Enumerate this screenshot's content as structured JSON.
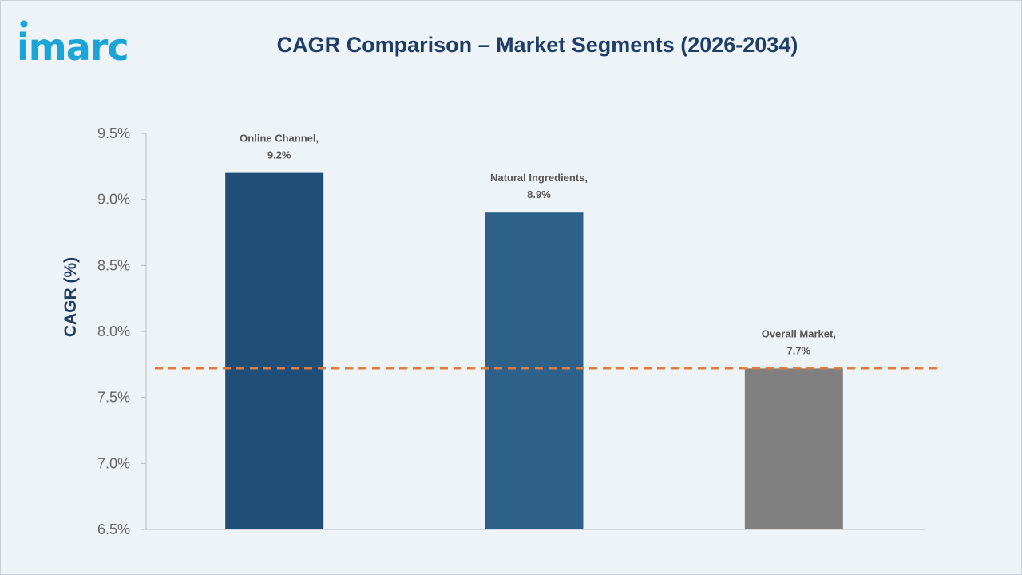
{
  "logo": {
    "text": "imarc"
  },
  "chart_data": {
    "type": "bar",
    "title": "CAGR Comparison – Market Segments (2026-2034)",
    "ylabel": "CAGR (%)",
    "xlabel": "",
    "ylim": [
      6.5,
      9.5
    ],
    "yticks": [
      "9.5%",
      "9.0%",
      "8.5%",
      "8.0%",
      "7.5%",
      "7.0%",
      "6.5%"
    ],
    "categories": [
      "Online Channel",
      "Natural Ingredients",
      "Overall Market"
    ],
    "values": [
      9.2,
      8.9,
      7.72
    ],
    "data_labels": [
      [
        "Online Channel,",
        "9.2%"
      ],
      [
        "Natural Ingredients,",
        "8.9%"
      ],
      [
        "Overall Market,",
        "7.7%"
      ]
    ],
    "colors": [
      "#1f4e79",
      "#2e6189",
      "#808080"
    ],
    "reference_line": {
      "value": 7.72,
      "style": "dashed",
      "color": "#e07b39"
    },
    "grid": false
  }
}
